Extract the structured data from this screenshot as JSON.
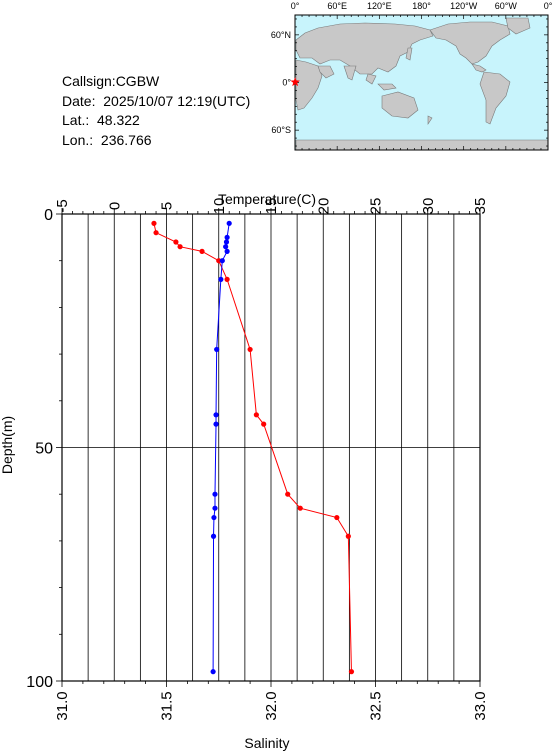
{
  "station": {
    "callsign": "Callsign:CGBW",
    "date": "Date:  2025/10/07 12:19(UTC)",
    "lat": "Lat.:  48.322",
    "lon": "Lon.:  236.766"
  },
  "map": {
    "top_labels": [
      "0°",
      "60°E",
      "120°E",
      "180°",
      "120°W",
      "60°W",
      "0°"
    ],
    "left_labels": [
      "60°N",
      "0°",
      "60°S"
    ],
    "station_marker": "star-icon",
    "colors": {
      "ocean": "#c8f4fc",
      "land": "#c8c8c8",
      "marker": "#ff0000"
    }
  },
  "chart_data": {
    "type": "line",
    "top_axis": {
      "label": "Temperature(C)",
      "range": [
        -5,
        35
      ],
      "ticks": [
        "-5",
        "0",
        "5",
        "10",
        "15",
        "20",
        "25",
        "30",
        "35"
      ]
    },
    "bottom_axis": {
      "label": "Salinity",
      "range": [
        31.0,
        33.0
      ],
      "ticks": [
        "31.0",
        "31.5",
        "32.0",
        "32.5",
        "33.0"
      ]
    },
    "left_axis": {
      "label": "Depth(m)",
      "range": [
        0,
        100
      ],
      "ticks": [
        "0",
        "50",
        "100"
      ],
      "inverted": true
    },
    "grid": true,
    "series": [
      {
        "name": "Temperature(C)",
        "axis": "top",
        "color": "#ff0000",
        "points": [
          [
            3.8,
            2
          ],
          [
            4.0,
            4
          ],
          [
            5.9,
            6
          ],
          [
            6.3,
            7
          ],
          [
            8.4,
            8
          ],
          [
            10.0,
            10
          ],
          [
            10.8,
            14
          ],
          [
            13.0,
            29
          ],
          [
            13.6,
            43
          ],
          [
            14.3,
            45
          ],
          [
            16.6,
            60
          ],
          [
            17.8,
            63
          ],
          [
            21.3,
            65
          ],
          [
            22.4,
            69
          ],
          [
            22.7,
            98
          ]
        ]
      },
      {
        "name": "Salinity",
        "axis": "bottom",
        "color": "#0000ff",
        "points": [
          [
            31.8,
            2
          ],
          [
            31.79,
            5
          ],
          [
            31.787,
            6
          ],
          [
            31.783,
            7
          ],
          [
            31.79,
            8
          ],
          [
            31.767,
            10
          ],
          [
            31.76,
            14
          ],
          [
            31.74,
            29
          ],
          [
            31.737,
            43
          ],
          [
            31.737,
            45
          ],
          [
            31.732,
            60
          ],
          [
            31.732,
            63
          ],
          [
            31.727,
            65
          ],
          [
            31.725,
            69
          ],
          [
            31.723,
            98
          ]
        ]
      }
    ]
  }
}
